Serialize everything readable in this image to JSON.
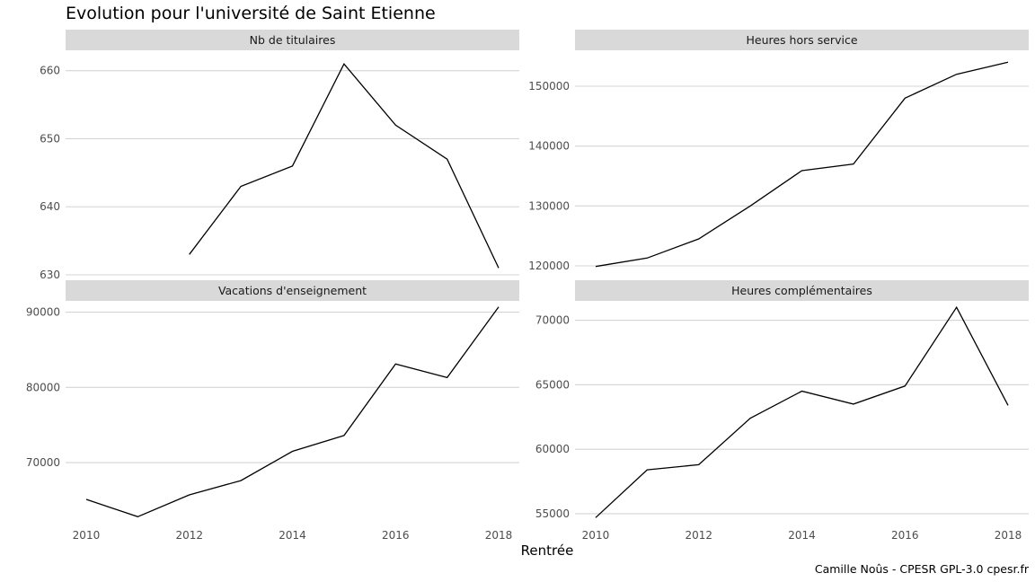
{
  "chart_data": {
    "type": "line",
    "title": "Evolution pour l'université de Saint Etienne",
    "xlabel": "Rentrée",
    "caption": "Camille Noûs - CPESR GPL-3.0 cpesr.fr",
    "grid": true,
    "x": [
      2010,
      2011,
      2012,
      2013,
      2014,
      2015,
      2016,
      2017,
      2018
    ],
    "xticks": [
      "2010",
      "2012",
      "2014",
      "2016",
      "2018"
    ],
    "xlim": [
      2009.6,
      2018.4
    ],
    "panels": [
      {
        "name": "Nb de titulaires",
        "ylim": [
          630,
          663
        ],
        "yticks": [
          630,
          640,
          650,
          660
        ],
        "values": [
          null,
          null,
          633,
          643,
          646,
          661,
          652,
          647,
          631
        ]
      },
      {
        "name": "Heures hors service",
        "ylim": [
          118500,
          156000
        ],
        "yticks": [
          120000,
          130000,
          140000,
          150000
        ],
        "values": [
          119900,
          121300,
          124500,
          130000,
          135900,
          137000,
          148000,
          152000,
          154000
        ]
      },
      {
        "name": "Vacations d'enseignement",
        "ylim": [
          62000,
          91500
        ],
        "yticks": [
          70000,
          80000,
          90000
        ],
        "values": [
          65100,
          62800,
          65700,
          67600,
          71500,
          73600,
          83100,
          81300,
          90700
        ]
      },
      {
        "name": "Heures complémentaires",
        "ylim": [
          54300,
          71500
        ],
        "yticks": [
          55000,
          60000,
          65000,
          70000
        ],
        "values": [
          54700,
          58400,
          58800,
          62400,
          64500,
          63500,
          64900,
          71000,
          63400
        ]
      }
    ]
  }
}
